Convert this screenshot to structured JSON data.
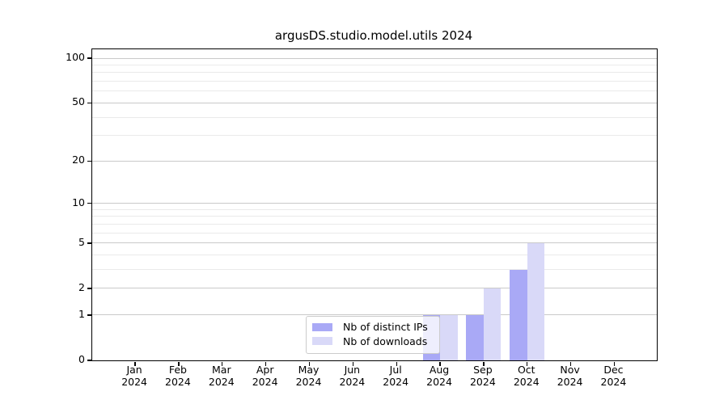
{
  "title": "argusDS.studio.model.utils 2024",
  "chart_data": {
    "type": "bar",
    "title": "argusDS.studio.model.utils 2024",
    "categories": [
      "Jan",
      "Feb",
      "Mar",
      "Apr",
      "May",
      "Jun",
      "Jul",
      "Aug",
      "Sep",
      "Oct",
      "Nov",
      "Dec"
    ],
    "x_sub_label": "2024",
    "series": [
      {
        "name": "Nb of distinct IPs",
        "color": "#a9a9f6",
        "values": [
          0,
          0,
          0,
          0,
          0,
          0,
          0,
          1,
          1,
          3,
          0,
          0
        ]
      },
      {
        "name": "Nb of downloads",
        "color": "#d9d9f8",
        "values": [
          0,
          0,
          0,
          0,
          0,
          0,
          0,
          1,
          2,
          5,
          0,
          0
        ]
      }
    ],
    "y_axis": {
      "scale": "log1p",
      "major_ticks": [
        0,
        1,
        2,
        5,
        10,
        20,
        50,
        100
      ],
      "minor_gridlines": [
        3,
        4,
        6,
        7,
        8,
        9,
        30,
        40,
        60,
        70,
        80,
        90
      ],
      "ylim": [
        0,
        115
      ]
    },
    "legend": {
      "position": "lower-center",
      "entries": [
        "Nb of distinct IPs",
        "Nb of downloads"
      ]
    },
    "grid": true
  },
  "colors": {
    "bar_distinct_ips": "#a9a9f6",
    "bar_downloads": "#d9d9f8",
    "grid_major": "#c9c9c9",
    "grid_minor": "#eaeaea",
    "axis_line": "#000000",
    "legend_border": "#cccccc",
    "text": "#000000"
  }
}
